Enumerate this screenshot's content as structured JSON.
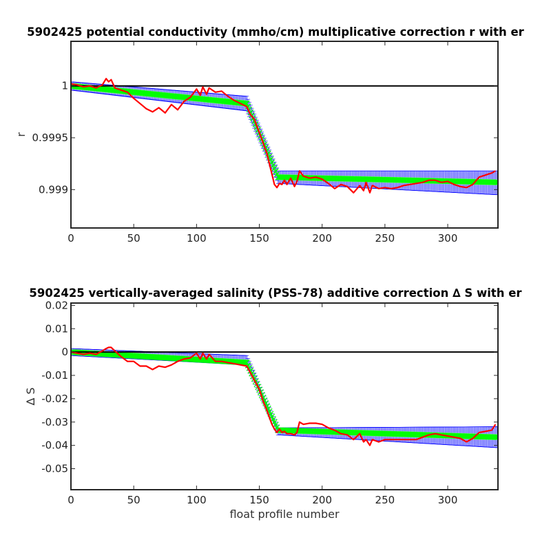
{
  "chart_data": [
    {
      "type": "line",
      "title": "5902425 potential conductivity (mmho/cm) multiplicative correction r with er",
      "xlabel": "",
      "ylabel": "r",
      "xlim": [
        0,
        340
      ],
      "ylim": [
        0.99863,
        1.00043
      ],
      "xticks": [
        0,
        50,
        100,
        150,
        200,
        250,
        300
      ],
      "xtick_labels": [
        "0",
        "50",
        "100",
        "150",
        "200",
        "250",
        "300"
      ],
      "yticks": [
        0.999,
        0.9995,
        1
      ],
      "ytick_labels": [
        "0.999",
        "0.9995",
        "1"
      ],
      "reference_line": 1,
      "grid": false,
      "series": [
        {
          "role": "correction",
          "color": "#00ff00",
          "x": [
            0,
            140,
            165,
            340
          ],
          "y": [
            1.0,
            0.99983,
            0.99912,
            0.99907
          ]
        },
        {
          "role": "error-band",
          "color": "#0000ff",
          "x": [
            0,
            140,
            165,
            340
          ],
          "upper": [
            1.00004,
            0.9999,
            0.99918,
            0.99918
          ],
          "lower": [
            0.99996,
            0.99976,
            0.99906,
            0.99895
          ]
        },
        {
          "role": "point-estimate",
          "color": "#ff0000",
          "x": [
            0,
            5,
            10,
            15,
            20,
            25,
            28,
            30,
            32,
            35,
            40,
            45,
            50,
            55,
            60,
            65,
            70,
            75,
            80,
            85,
            90,
            95,
            100,
            103,
            105,
            108,
            110,
            115,
            120,
            125,
            130,
            135,
            140,
            143,
            146,
            150,
            153,
            156,
            160,
            162,
            164,
            166,
            168,
            170,
            172,
            175,
            178,
            180,
            182,
            185,
            190,
            195,
            200,
            205,
            210,
            215,
            220,
            225,
            230,
            233,
            235,
            238,
            240,
            245,
            250,
            255,
            260,
            265,
            270,
            275,
            280,
            285,
            290,
            295,
            300,
            305,
            310,
            315,
            320,
            325,
            330,
            335,
            338
          ],
          "y": [
            1.00002,
            1.00001,
            0.99999,
            1.0,
            0.99998,
            1.00001,
            1.00007,
            1.00004,
            1.00006,
            0.99998,
            0.99996,
            0.99994,
            0.99988,
            0.99983,
            0.99978,
            0.99975,
            0.99979,
            0.99974,
            0.99982,
            0.99977,
            0.99985,
            0.99989,
            0.99997,
            0.99991,
            0.99999,
            0.99992,
            0.99998,
            0.99994,
            0.99995,
            0.9999,
            0.99986,
            0.99983,
            0.9998,
            0.99972,
            0.99968,
            0.99955,
            0.99945,
            0.99935,
            0.99915,
            0.99905,
            0.99902,
            0.99906,
            0.99905,
            0.99909,
            0.99905,
            0.99911,
            0.99903,
            0.99908,
            0.99918,
            0.99913,
            0.99911,
            0.99912,
            0.9991,
            0.99906,
            0.99901,
            0.99905,
            0.99903,
            0.99897,
            0.99904,
            0.99899,
            0.99907,
            0.99897,
            0.99904,
            0.99901,
            0.99902,
            0.99901,
            0.99902,
            0.99904,
            0.99905,
            0.99906,
            0.99907,
            0.99909,
            0.99909,
            0.99907,
            0.99908,
            0.99905,
            0.99903,
            0.99902,
            0.99905,
            0.99912,
            0.99914,
            0.99916,
            0.99918
          ]
        }
      ]
    },
    {
      "type": "line",
      "title": "5902425 vertically-averaged salinity (PSS-78) additive correction ∆ S with er",
      "xlabel": "float profile number",
      "ylabel": "∆ S",
      "xlim": [
        0,
        340
      ],
      "ylim": [
        -0.059,
        0.021
      ],
      "xticks": [
        0,
        50,
        100,
        150,
        200,
        250,
        300
      ],
      "xtick_labels": [
        "0",
        "50",
        "100",
        "150",
        "200",
        "250",
        "300"
      ],
      "yticks": [
        0.02,
        0.01,
        0,
        -0.01,
        -0.02,
        -0.03,
        -0.04,
        -0.05
      ],
      "ytick_labels": [
        "0.02",
        "0.01",
        "0",
        "-0.01",
        "-0.02",
        "-0.03",
        "-0.04",
        "-0.05"
      ],
      "reference_line": 0,
      "grid": false,
      "series": [
        {
          "role": "correction",
          "color": "#00ff00",
          "x": [
            0,
            140,
            165,
            340
          ],
          "y": [
            0.0,
            -0.0045,
            -0.0335,
            -0.0365
          ]
        },
        {
          "role": "error-band",
          "color": "#0000ff",
          "x": [
            0,
            140,
            165,
            340
          ],
          "upper": [
            0.0015,
            -0.0015,
            -0.0325,
            -0.032
          ],
          "lower": [
            -0.0015,
            -0.0055,
            -0.0355,
            -0.041
          ]
        },
        {
          "role": "point-estimate",
          "color": "#ff0000",
          "x": [
            0,
            5,
            10,
            15,
            20,
            25,
            28,
            30,
            32,
            35,
            40,
            45,
            50,
            55,
            60,
            65,
            70,
            75,
            80,
            85,
            90,
            95,
            100,
            103,
            105,
            108,
            110,
            115,
            120,
            125,
            130,
            135,
            140,
            143,
            146,
            150,
            153,
            156,
            160,
            162,
            164,
            166,
            168,
            170,
            172,
            175,
            178,
            180,
            182,
            185,
            190,
            195,
            200,
            205,
            210,
            215,
            220,
            225,
            230,
            233,
            235,
            238,
            240,
            245,
            250,
            255,
            260,
            265,
            270,
            275,
            280,
            285,
            290,
            295,
            300,
            305,
            310,
            315,
            320,
            325,
            330,
            335,
            338
          ],
          "y": [
            0.0,
            -0.0005,
            -0.001,
            -0.0005,
            -0.001,
            0.0005,
            0.0015,
            0.002,
            0.002,
            0.0005,
            -0.002,
            -0.004,
            -0.004,
            -0.006,
            -0.006,
            -0.0075,
            -0.006,
            -0.0065,
            -0.0055,
            -0.004,
            -0.003,
            -0.0025,
            -0.0005,
            -0.003,
            -0.0005,
            -0.003,
            -0.001,
            -0.004,
            -0.004,
            -0.0045,
            -0.005,
            -0.0055,
            -0.006,
            -0.009,
            -0.012,
            -0.016,
            -0.021,
            -0.025,
            -0.031,
            -0.033,
            -0.0345,
            -0.033,
            -0.0345,
            -0.034,
            -0.035,
            -0.035,
            -0.0355,
            -0.0345,
            -0.03,
            -0.031,
            -0.0305,
            -0.0305,
            -0.031,
            -0.0325,
            -0.0335,
            -0.035,
            -0.0355,
            -0.0375,
            -0.035,
            -0.0385,
            -0.0375,
            -0.04,
            -0.0375,
            -0.0385,
            -0.0375,
            -0.0375,
            -0.0375,
            -0.0375,
            -0.0375,
            -0.0375,
            -0.0365,
            -0.0355,
            -0.035,
            -0.0355,
            -0.036,
            -0.0365,
            -0.037,
            -0.0385,
            -0.037,
            -0.0345,
            -0.034,
            -0.0335,
            -0.031
          ]
        }
      ]
    }
  ]
}
